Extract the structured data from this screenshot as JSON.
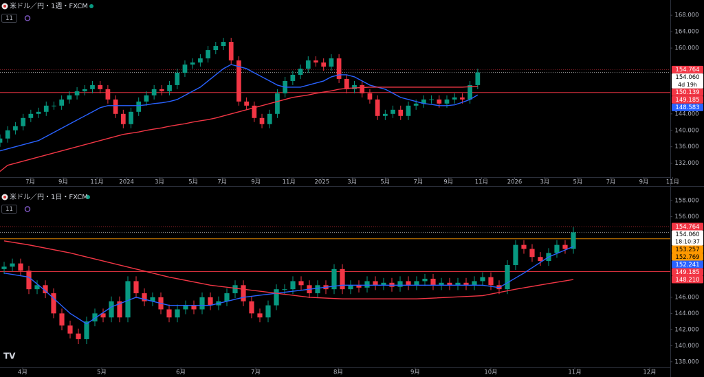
{
  "chart_data": [
    {
      "type": "candlestick",
      "title": "米ドル／円・1週・FXCM",
      "badge": "11",
      "up_color": "#089981",
      "down_color": "#f23645",
      "open": [
        137,
        138,
        140,
        141,
        143,
        144,
        144.5,
        146,
        146,
        147.5,
        148.5,
        149.5,
        150,
        151,
        150,
        147.5,
        144,
        141.5,
        144.5,
        147,
        148.5,
        150,
        149.5,
        151,
        154,
        156,
        156.5,
        157.5,
        159.5,
        160.5,
        161.5,
        157,
        147,
        146,
        143,
        141.5,
        144,
        149,
        152,
        153.5,
        155,
        157,
        156.5,
        155.5,
        157.5,
        152.5,
        150,
        151,
        149,
        147.5,
        143.5,
        144,
        145,
        143.5,
        146,
        146.5,
        147.5,
        147.5,
        146.5,
        147.5,
        148,
        147.5,
        151
      ],
      "high": [
        139,
        141,
        142,
        144,
        145,
        145.5,
        147,
        147,
        148.5,
        149.5,
        150.5,
        151,
        152,
        152,
        151,
        148.5,
        145,
        145.5,
        148,
        149.5,
        151,
        151,
        152,
        155,
        157,
        157.5,
        158.5,
        160.5,
        161.5,
        162.5,
        162.5,
        158,
        148,
        147,
        144,
        145,
        150,
        153,
        154.5,
        156,
        158,
        158,
        157.5,
        158.5,
        158.5,
        153.5,
        152,
        152,
        150,
        148.5,
        145,
        146,
        146,
        147,
        147.5,
        148.5,
        148.5,
        148.5,
        148.5,
        149,
        149,
        152,
        155
      ],
      "low": [
        136,
        137,
        139,
        140,
        142,
        143,
        143.5,
        145,
        145,
        146.5,
        147.5,
        148.5,
        149,
        149,
        146.5,
        143,
        140.5,
        140.5,
        143.5,
        146,
        147.5,
        148.5,
        148.5,
        150,
        153,
        155,
        155.5,
        156.5,
        158.5,
        159.5,
        156,
        146,
        145,
        142,
        140.5,
        140.5,
        143,
        148,
        151,
        152.5,
        154,
        155.5,
        154.5,
        154.5,
        151.5,
        149,
        149,
        148,
        146.5,
        142.5,
        142.5,
        143,
        142.5,
        142.5,
        145,
        145.5,
        146.5,
        145.5,
        145.5,
        146.5,
        146.5,
        146.5,
        150
      ],
      "close": [
        138,
        140,
        141,
        143,
        144,
        144.5,
        146,
        146,
        147.5,
        148.5,
        149.5,
        150,
        151,
        150,
        147.5,
        144,
        141.5,
        144.5,
        147,
        148.5,
        150,
        149.5,
        151,
        154,
        156,
        156.5,
        157.5,
        159.5,
        160.5,
        161.5,
        157,
        147,
        146,
        143,
        141.5,
        144,
        149,
        152,
        153.5,
        155,
        157,
        156.5,
        155.5,
        157.5,
        152.5,
        150,
        151,
        149,
        147.5,
        143.5,
        144,
        145,
        143.5,
        146,
        146.5,
        147.5,
        147.5,
        146.5,
        147.5,
        148,
        147.5,
        151,
        154.06
      ],
      "moving_averages": [
        {
          "color": "#2962ff",
          "values": [
            135,
            135.5,
            136,
            136.5,
            137,
            137.5,
            138.5,
            139.5,
            140.5,
            141.5,
            142.5,
            143.5,
            144.5,
            145.5,
            146,
            146,
            146,
            146,
            146,
            146.2,
            146.5,
            146.7,
            147,
            147.5,
            148.5,
            149.5,
            150.5,
            152,
            153.5,
            155,
            156,
            155.5,
            155,
            154,
            153,
            152,
            151,
            150.5,
            150.5,
            150.5,
            151,
            151.5,
            152,
            153,
            153.5,
            153.5,
            153,
            152,
            151,
            150.5,
            150,
            149,
            148,
            147.5,
            147,
            146.5,
            146.3,
            146,
            146,
            146.2,
            146.8,
            147.5,
            148.6
          ]
        },
        {
          "color": "#f23645",
          "values": [
            130,
            131.5,
            132,
            132.5,
            133,
            133.5,
            134,
            134.5,
            135,
            135.5,
            136,
            136.5,
            137,
            137.5,
            138,
            138.5,
            139,
            139.3,
            139.6,
            140,
            140.3,
            140.6,
            141,
            141.3,
            141.6,
            142,
            142.3,
            142.6,
            143,
            143.5,
            144,
            144.5,
            145,
            145.5,
            146,
            146.5,
            147,
            147.5,
            148,
            148.3,
            148.6,
            149,
            149.3,
            149.6,
            150,
            150.2,
            150.3,
            150.4,
            150.5,
            150.5,
            150.5,
            150.5,
            150.5,
            150.5,
            150.5,
            150.5,
            150.5,
            150.5,
            150.5,
            150.5,
            150.5,
            150.6,
            150.7
          ]
        }
      ],
      "xlim": [
        0,
        87
      ],
      "xticks": [
        {
          "value": 3.93,
          "label": "7月"
        },
        {
          "value": 8.21,
          "label": "9月"
        },
        {
          "value": 12.59,
          "label": "11月"
        },
        {
          "value": 16.43,
          "label": "2024"
        },
        {
          "value": 20.71,
          "label": "3月"
        },
        {
          "value": 25.09,
          "label": "5月"
        },
        {
          "value": 28.84,
          "label": "7月"
        },
        {
          "value": 33.21,
          "label": "9月"
        },
        {
          "value": 37.5,
          "label": "11月"
        },
        {
          "value": 41.79,
          "label": "2025"
        },
        {
          "value": 45.71,
          "label": "3月"
        },
        {
          "value": 50,
          "label": "5月"
        },
        {
          "value": 54.29,
          "label": "7月"
        },
        {
          "value": 58.21,
          "label": "9月"
        },
        {
          "value": 62.5,
          "label": "11月"
        },
        {
          "value": 66.79,
          "label": "2026"
        },
        {
          "value": 70.71,
          "label": "3月"
        },
        {
          "value": 75,
          "label": "5月"
        },
        {
          "value": 79.29,
          "label": "7月"
        },
        {
          "value": 83.57,
          "label": "9月"
        },
        {
          "value": 87.3,
          "label": "11月"
        }
      ],
      "ylim": [
        128.6,
        171.7
      ],
      "yticks": [
        {
          "value": 168,
          "label": "168.000"
        },
        {
          "value": 164,
          "label": "164.000"
        },
        {
          "value": 160,
          "label": "160.000"
        },
        {
          "value": 144,
          "label": "144.000"
        },
        {
          "value": 140,
          "label": "140.000"
        },
        {
          "value": 136,
          "label": "136.000"
        },
        {
          "value": 132,
          "label": "132.000"
        }
      ],
      "price_tags": [
        {
          "value": 154.764,
          "label": "154.764",
          "color": "#f23645",
          "text_color": "#ffffff",
          "line": "dotted"
        },
        {
          "value": 154.06,
          "label": "154.060",
          "sublabel": "4d 19h",
          "color": "#ffffff",
          "text_color": "#000000",
          "line": "dotted"
        },
        {
          "value": 150.139,
          "label": "150.139",
          "color": "#f23645",
          "text_color": "#ffffff"
        },
        {
          "value": 149.185,
          "label": "149.185",
          "color": "#f23645",
          "text_color": "#ffffff",
          "line": "solid"
        },
        {
          "value": 148.583,
          "label": "148.583",
          "color": "#2962ff",
          "text_color": "#ffffff"
        }
      ]
    },
    {
      "type": "candlestick",
      "title": "米ドル／円・1日・FXCM",
      "badge": "11",
      "up_color": "#089981",
      "down_color": "#f23645",
      "open": [
        149.5,
        149.8,
        150.2,
        149.3,
        147,
        147.5,
        146.5,
        144,
        142.5,
        141.5,
        140.8,
        143,
        144,
        143.5,
        145.5,
        143.5,
        148,
        146.5,
        145.5,
        146,
        144.5,
        143.5,
        144.5,
        145,
        144.5,
        146,
        145,
        145.5,
        146.5,
        147.5,
        145.5,
        144,
        143.5,
        145,
        147,
        147,
        148,
        147.5,
        146.5,
        147.5,
        147,
        149.5,
        147,
        147.5,
        147.2,
        148,
        147.5,
        147.8,
        147.3,
        148,
        147.5,
        148,
        148.3,
        147.5,
        147.8,
        147.5,
        147.8,
        147.5,
        148,
        148.5,
        147.5,
        147,
        150,
        152.5,
        152,
        151,
        150.5,
        151.5,
        152.5,
        152
      ],
      "high": [
        150.4,
        150.8,
        150.8,
        149.9,
        148.1,
        148.1,
        147.1,
        144.6,
        143.1,
        142.1,
        143.6,
        144.6,
        144.6,
        146.1,
        146.1,
        148.6,
        148.6,
        147.1,
        146.6,
        146.6,
        145.1,
        145.1,
        145.6,
        145.6,
        146.6,
        146.6,
        146.1,
        147.1,
        148.1,
        148.1,
        146.1,
        144.6,
        145.6,
        147.6,
        147.6,
        148.6,
        148.6,
        148.1,
        148.1,
        148.1,
        150.1,
        150.1,
        148.1,
        148.1,
        148.6,
        148.6,
        148.4,
        148.4,
        148.6,
        148.6,
        148.6,
        148.9,
        148.9,
        148.4,
        148.4,
        148.4,
        148.4,
        148.6,
        149.1,
        149.1,
        148.1,
        150.6,
        153.1,
        153.1,
        152.6,
        151.6,
        152.1,
        153.1,
        153.1,
        154.7
      ],
      "low": [
        148.9,
        149.2,
        148.7,
        146.4,
        146.4,
        145.9,
        143.4,
        141.9,
        140.9,
        140.2,
        140.2,
        142.4,
        142.9,
        142.9,
        142.9,
        142.9,
        145.9,
        144.9,
        144.9,
        143.9,
        142.9,
        142.9,
        143.9,
        143.9,
        143.9,
        144.4,
        144.4,
        144.9,
        145.9,
        144.9,
        143.4,
        142.9,
        142.9,
        144.4,
        146.4,
        146.4,
        146.9,
        145.9,
        145.9,
        146.4,
        146.4,
        146.4,
        146.4,
        146.6,
        146.6,
        146.9,
        146.9,
        146.7,
        146.7,
        146.9,
        146.9,
        147.4,
        146.9,
        146.9,
        146.9,
        146.9,
        146.9,
        146.9,
        147.4,
        146.9,
        146.4,
        146.4,
        149.4,
        151.4,
        150.4,
        149.9,
        149.9,
        150.9,
        151.4,
        151.4
      ],
      "close": [
        149.8,
        150.2,
        149.3,
        147,
        147.5,
        146.5,
        144,
        142.5,
        141.5,
        140.8,
        143,
        144,
        143.5,
        145.5,
        143.5,
        148,
        146.5,
        145.5,
        146,
        144.5,
        143.5,
        144.5,
        145,
        144.5,
        146,
        145,
        145.5,
        146.5,
        147.5,
        145.5,
        144,
        143.5,
        145,
        147,
        147,
        148,
        147.5,
        146.5,
        147.5,
        147,
        149.5,
        147,
        147.5,
        147.2,
        148,
        147.5,
        147.8,
        147.3,
        148,
        147.5,
        148,
        148.3,
        147.5,
        147.8,
        147.5,
        147.8,
        147.5,
        148,
        148.5,
        147.5,
        147,
        150,
        152.5,
        152,
        151,
        150.5,
        151.5,
        152.5,
        152,
        154.06
      ],
      "moving_averages": [
        {
          "color": "#2962ff",
          "x": [
            0,
            3,
            5,
            8,
            10,
            13,
            16,
            20,
            25,
            29,
            33,
            37,
            41,
            50,
            58,
            60,
            63,
            66,
            69
          ],
          "values": [
            149,
            148.5,
            146.8,
            144,
            142.7,
            144.8,
            146,
            145,
            145,
            146,
            146.5,
            147,
            147.5,
            147.5,
            147.5,
            147.2,
            149,
            151,
            152.3
          ]
        },
        {
          "color": "#f23645",
          "x": [
            0,
            3,
            8,
            12,
            16,
            20,
            25,
            29,
            33,
            37,
            41,
            50,
            58,
            62,
            66,
            69
          ],
          "values": [
            153,
            152.5,
            151.5,
            150.5,
            149.5,
            148.5,
            147.5,
            147,
            146.5,
            146,
            145.8,
            145.8,
            146.2,
            147,
            147.7,
            148.2
          ]
        }
      ],
      "xlim": [
        -0.5,
        80.75
      ],
      "xticks": [
        {
          "value": 2.25,
          "label": "4月"
        },
        {
          "value": 11.83,
          "label": "5月"
        },
        {
          "value": 21.42,
          "label": "6月"
        },
        {
          "value": 30.5,
          "label": "7月"
        },
        {
          "value": 40.5,
          "label": "8月"
        },
        {
          "value": 49.83,
          "label": "9月"
        },
        {
          "value": 59,
          "label": "10月"
        },
        {
          "value": 69.17,
          "label": "11月"
        },
        {
          "value": 78.25,
          "label": "12月"
        }
      ],
      "ylim": [
        137.3,
        159.2
      ],
      "yticks": [
        {
          "value": 158,
          "label": "158.000"
        },
        {
          "value": 156,
          "label": "156.000"
        },
        {
          "value": 146,
          "label": "146.000"
        },
        {
          "value": 144,
          "label": "144.000"
        },
        {
          "value": 142,
          "label": "142.000"
        },
        {
          "value": 140,
          "label": "140.000"
        },
        {
          "value": 138,
          "label": "138.000"
        }
      ],
      "price_tags": [
        {
          "value": 154.764,
          "label": "154.764",
          "color": "#f23645",
          "text_color": "#ffffff",
          "line": "dotted"
        },
        {
          "value": 154.06,
          "label": "154.060",
          "sublabel": "18:10:37",
          "color": "#ffffff",
          "text_color": "#000000",
          "line": "dotted"
        },
        {
          "value": 153.257,
          "label": "153.257",
          "color": "#ff9800",
          "text_color": "#000000",
          "line": "solid"
        },
        {
          "value": 152.769,
          "label": "152.769",
          "color": "#ff9800",
          "text_color": "#000000"
        },
        {
          "value": 152.241,
          "label": "152.241",
          "color": "#2962ff",
          "text_color": "#ffffff"
        },
        {
          "value": 149.185,
          "label": "149.185",
          "color": "#f23645",
          "text_color": "#ffffff",
          "line": "solid"
        },
        {
          "value": 148.21,
          "label": "148.210",
          "color": "#f23645",
          "text_color": "#ffffff"
        }
      ]
    }
  ]
}
